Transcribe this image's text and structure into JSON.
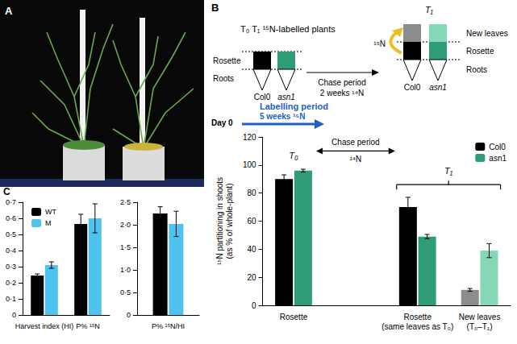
{
  "panels": [
    "A",
    "B",
    "C"
  ],
  "diagram": {
    "t0_title": "T₀ T₁ ¹⁵N-labelled plants",
    "plants": [
      "Col0",
      "asn1"
    ],
    "left_parts": [
      "Rosette",
      "Roots"
    ],
    "chase": [
      "Chase period",
      "2 weeks ¹⁴N"
    ],
    "t1": "T₁",
    "right_parts": [
      "New leaves",
      "Rosette",
      "Roots"
    ],
    "transfer": "¹⁵N",
    "labelling": [
      "Labelling period",
      "5 weeks ¹⁵N"
    ],
    "day0": "Day 0"
  },
  "chart_data": [
    {
      "type": "bar",
      "ylabel": "¹⁵N partitioning in shoots\n(as % of whole-plant)",
      "categories": [
        "Rosette",
        null,
        "Rosette\n(same leaves as T₀)",
        "New leaves\n(T₀–T₁)"
      ],
      "series": [
        {
          "name": "Col0",
          "color": "#000000",
          "colors": [
            "#000000",
            null,
            "#000000",
            "#8c8c8c"
          ],
          "values": [
            90,
            null,
            70,
            11
          ],
          "errors": [
            3,
            null,
            7,
            1
          ]
        },
        {
          "name": "asn1",
          "color": "#2e9c78",
          "colors": [
            "#2e9c78",
            null,
            "#2e9c78",
            "#86d7b5"
          ],
          "values": [
            96,
            null,
            49,
            39
          ],
          "errors": [
            1,
            null,
            1.5,
            5
          ]
        }
      ],
      "ylim": [
        0,
        120
      ],
      "yticks": [
        0,
        20,
        40,
        60,
        80,
        100,
        120
      ],
      "grid": false,
      "legend": "top-right",
      "annotations": {
        "t0": "T₀",
        "chase": "Chase period",
        "chase_label": "¹⁴N",
        "t1": "T₁"
      }
    },
    {
      "type": "bar",
      "categories": [
        "Harvest index (HI)",
        "P% ¹⁵N"
      ],
      "series": [
        {
          "name": "WT",
          "color": "#000000",
          "values": [
            0.245,
            0.565
          ],
          "errors": [
            0.01,
            0.06
          ]
        },
        {
          "name": "M",
          "color": "#4fc3ef",
          "values": [
            0.31,
            0.6
          ],
          "errors": [
            0.02,
            0.09
          ]
        }
      ],
      "ylim": [
        0,
        0.7
      ],
      "yticks": [
        0,
        {
          "value": 0.1,
          "label": "0·1"
        },
        {
          "value": 0.2,
          "label": "0·2"
        },
        {
          "value": 0.3,
          "label": "0·3"
        },
        {
          "value": 0.4,
          "label": "0·4"
        },
        {
          "value": 0.5,
          "label": "0·5"
        },
        {
          "value": 0.6,
          "label": "0·6"
        },
        {
          "value": 0.7,
          "label": "0·7"
        }
      ],
      "grid": false,
      "legend": "top-left"
    },
    {
      "type": "bar",
      "categories": [
        "P% ¹⁵N/HI"
      ],
      "series": [
        {
          "name": "WT",
          "color": "#000000",
          "values": [
            2.25
          ],
          "errors": [
            0.15
          ]
        },
        {
          "name": "M",
          "color": "#4fc3ef",
          "values": [
            2.02
          ],
          "errors": [
            0.28
          ]
        }
      ],
      "ylim": [
        0,
        2.5
      ],
      "yticks": [
        0,
        {
          "value": 0.5,
          "label": "0·5"
        },
        {
          "value": 1,
          "label": "1·0"
        },
        {
          "value": 1.5,
          "label": "1·5"
        },
        {
          "value": 2,
          "label": "2·0"
        },
        {
          "value": 2.5,
          "label": "2·5"
        }
      ],
      "grid": false,
      "legend": false
    }
  ]
}
